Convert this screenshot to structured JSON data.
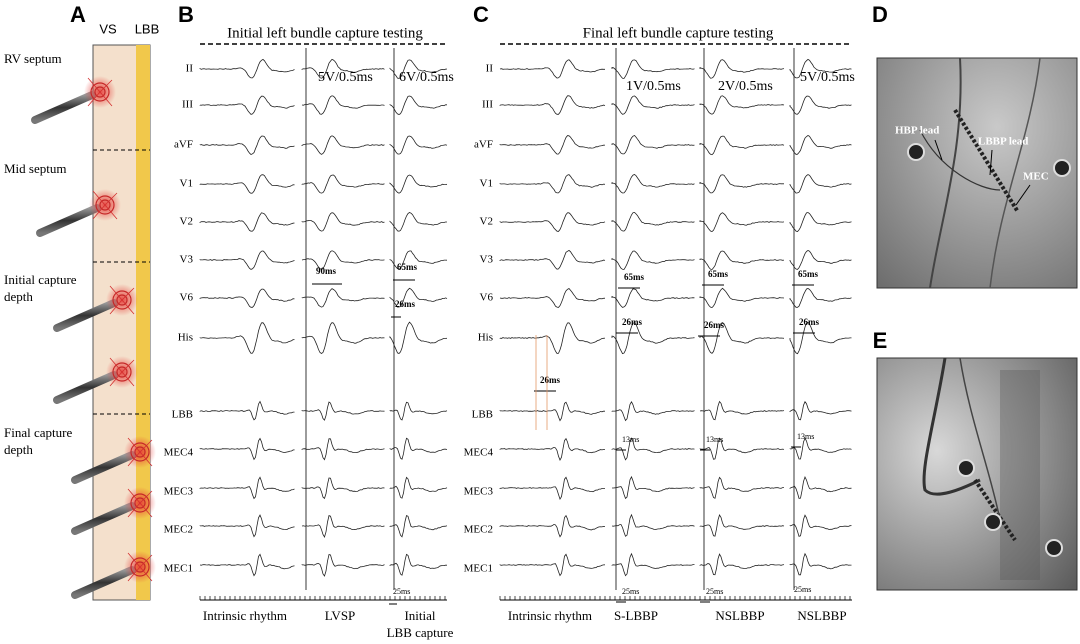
{
  "panel_a": {
    "letter": "A",
    "columns": [
      "VS",
      "LBB"
    ],
    "labels": [
      "RV septum",
      "Mid septum",
      "Initial capture depth",
      "Final capture depth"
    ]
  },
  "panel_b": {
    "letter": "B",
    "title": "Initial left bundle capture testing",
    "leads": [
      "II",
      "III",
      "aVF",
      "V1",
      "V2",
      "V3",
      "V6",
      "His",
      "LBB",
      "MEC4",
      "MEC3",
      "MEC2",
      "MEC1"
    ],
    "settings": [
      "5V/0.5ms",
      "6V/0.5ms"
    ],
    "intervals": [
      "90ms",
      "65ms",
      "26ms",
      "25ms"
    ],
    "columns": [
      "Intrinsic rhythm",
      "LVSP",
      "Initial LBB capture"
    ]
  },
  "panel_c": {
    "letter": "C",
    "title": "Final left bundle capture testing",
    "leads": [
      "II",
      "III",
      "aVF",
      "V1",
      "V2",
      "V3",
      "V6",
      "His",
      "LBB",
      "MEC4",
      "MEC3",
      "MEC2",
      "MEC1"
    ],
    "settings": [
      "1V/0.5ms",
      "2V/0.5ms",
      "5V/0.5ms"
    ],
    "intervals": [
      "26ms",
      "65ms",
      "26ms",
      "13ms",
      "25ms",
      "65ms",
      "26ms",
      "13ms",
      "25ms",
      "65ms",
      "26ms",
      "13ms",
      "25ms"
    ],
    "columns": [
      "Intrinsic rhythm",
      "S-LBBP",
      "NSLBBP",
      "NSLBBP"
    ]
  },
  "panel_d": {
    "letter": "D",
    "labels": [
      "HBP lead",
      "LBBP lead",
      "MEC"
    ]
  },
  "panel_e": {
    "letter": "E"
  }
}
